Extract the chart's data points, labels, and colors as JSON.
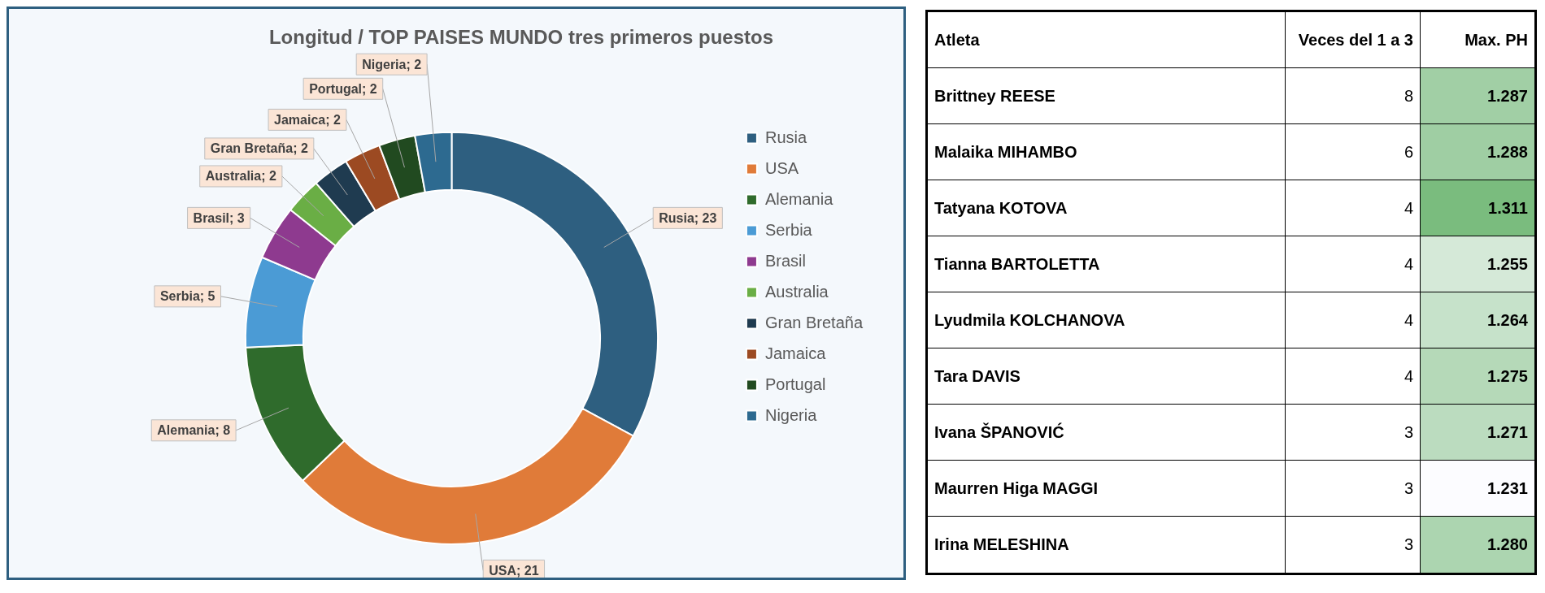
{
  "chart_data": [
    {
      "type": "donut",
      "title": "Longitud / TOP PAISES MUNDO tres primeros puestos",
      "categories": [
        "Rusia",
        "USA",
        "Alemania",
        "Serbia",
        "Brasil",
        "Australia",
        "Gran Bretaña",
        "Jamaica",
        "Portugal",
        "Nigeria"
      ],
      "values": [
        23,
        21,
        8,
        5,
        3,
        2,
        2,
        2,
        2,
        2
      ],
      "colors": [
        "#2e5f80",
        "#e07b39",
        "#2f6b2c",
        "#4b9bd5",
        "#8e3a8f",
        "#6aae45",
        "#1f3b50",
        "#9c4a22",
        "#214a20",
        "#2d6a90"
      ],
      "value_labels": [
        "Rusia; 23",
        "USA; 21",
        "Alemania; 8",
        "Serbia; 5",
        "Brasil; 3",
        "Australia; 2",
        "Gran Bretaña; 2",
        "Jamaica; 2",
        "Portugal; 2",
        "Nigeria; 2"
      ],
      "legend": "right"
    },
    {
      "type": "other",
      "annotations": [
        "Atleta",
        "Veces del 1 a 3",
        "Max. PH",
        "Brittney REESE",
        "8",
        "1.287",
        "Malaika MIHAMBO",
        "6",
        "1.288",
        "Tatyana KOTOVA",
        "4",
        "1.311",
        "Tianna BARTOLETTA",
        "4",
        "1.255",
        "Lyudmila KOLCHANOVA",
        "4",
        "1.264",
        "Tara DAVIS",
        "4",
        "1.275",
        "Ivana ŠPANOVIĆ",
        "3",
        "1.271",
        "Maurren Higa MAGGI",
        "3",
        "1.231",
        "Irina MELESHINA",
        "3",
        "1.280"
      ]
    }
  ]
}
